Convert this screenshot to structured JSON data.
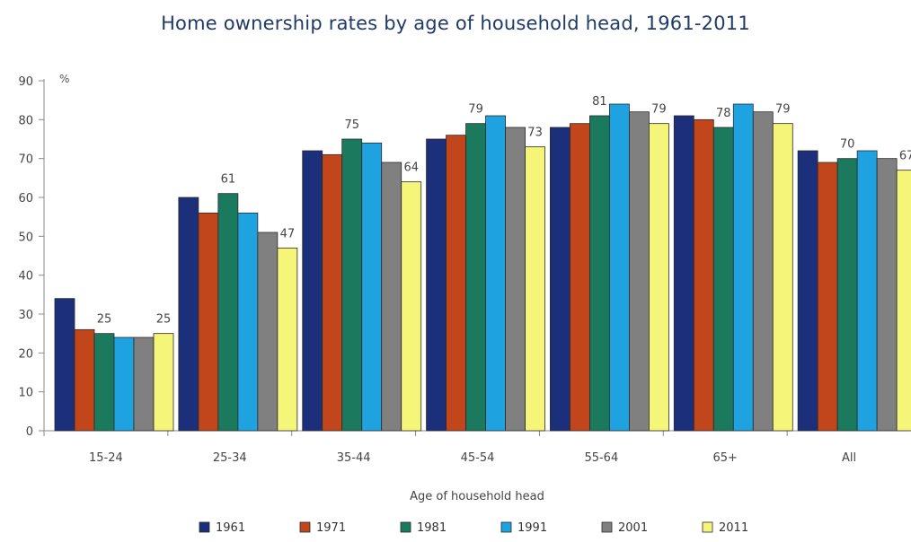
{
  "chart_data": {
    "type": "bar",
    "title": "Home ownership rates by age of household head, 1961-2011",
    "xlabel": "Age of household head",
    "ylabel": "%",
    "ylim": [
      0,
      90
    ],
    "yticks": [
      0,
      10,
      20,
      30,
      40,
      50,
      60,
      70,
      80,
      90
    ],
    "grid": false,
    "legend_position": "bottom",
    "categories": [
      "15-24",
      "25-34",
      "35-44",
      "45-54",
      "55-64",
      "65+",
      "All"
    ],
    "series": [
      {
        "name": "1961",
        "color": "#1c2f7a",
        "values": [
          34,
          60,
          72,
          75,
          78,
          81,
          72
        ]
      },
      {
        "name": "1971",
        "color": "#c2461b",
        "values": [
          26,
          56,
          71,
          76,
          79,
          80,
          69
        ]
      },
      {
        "name": "1981",
        "color": "#1b7a5e",
        "values": [
          25,
          61,
          75,
          79,
          81,
          78,
          70
        ]
      },
      {
        "name": "1991",
        "color": "#1ea3e0",
        "values": [
          24,
          56,
          74,
          81,
          84,
          84,
          72
        ]
      },
      {
        "name": "2001",
        "color": "#808080",
        "values": [
          24,
          51,
          69,
          78,
          82,
          82,
          70
        ]
      },
      {
        "name": "2011",
        "color": "#f5f57a",
        "values": [
          25,
          47,
          64,
          73,
          79,
          79,
          67
        ]
      }
    ],
    "data_labels": [
      {
        "category": "15-24",
        "series": "1981",
        "text": "25"
      },
      {
        "category": "15-24",
        "series": "2011",
        "text": "25"
      },
      {
        "category": "25-34",
        "series": "1981",
        "text": "61"
      },
      {
        "category": "25-34",
        "series": "2011",
        "text": "47"
      },
      {
        "category": "35-44",
        "series": "1981",
        "text": "75"
      },
      {
        "category": "35-44",
        "series": "2011",
        "text": "64"
      },
      {
        "category": "45-54",
        "series": "1981",
        "text": "79"
      },
      {
        "category": "45-54",
        "series": "2011",
        "text": "73"
      },
      {
        "category": "55-64",
        "series": "1981",
        "text": "81"
      },
      {
        "category": "55-64",
        "series": "2011",
        "text": "79"
      },
      {
        "category": "65+",
        "series": "1981",
        "text": "78"
      },
      {
        "category": "65+",
        "series": "2011",
        "text": "79"
      },
      {
        "category": "All",
        "series": "1981",
        "text": "70"
      },
      {
        "category": "All",
        "series": "2011",
        "text": "67"
      }
    ]
  }
}
